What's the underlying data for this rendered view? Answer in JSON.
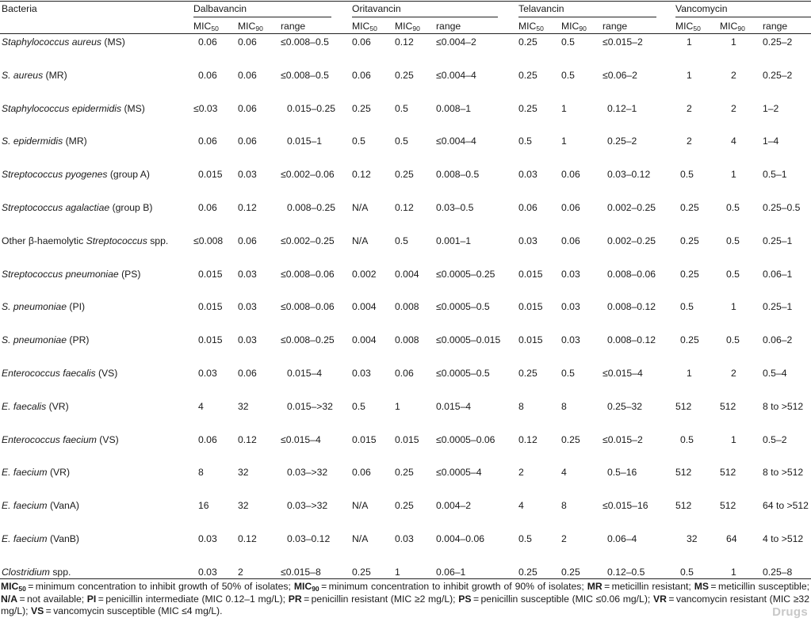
{
  "table": {
    "bacteria_header": "Bacteria",
    "drugs": [
      "Dalbavancin",
      "Oritavancin",
      "Telavancin",
      "Vancomycin"
    ],
    "sub_headers": {
      "mic": "MIC",
      "mic50_sub": "50",
      "mic90_sub": "90",
      "range": "range"
    },
    "rows": [
      {
        "bacteria": {
          "italic": "Staphylococcus aureus",
          "plain": " (MS)"
        },
        "values": [
          "0.06",
          "0.06",
          "≤0.008–0.5",
          "0.06",
          "0.12",
          "≤0.004–2",
          "0.25",
          "0.5",
          "≤0.015–2",
          "1",
          "1",
          "0.25–2"
        ]
      },
      {
        "bacteria": {
          "italic": "S. aureus",
          "plain": " (MR)"
        },
        "values": [
          "0.06",
          "0.06",
          "≤0.008–0.5",
          "0.06",
          "0.25",
          "≤0.004–4",
          "0.25",
          "0.5",
          "≤0.06–2",
          "1",
          "2",
          "0.25–2"
        ]
      },
      {
        "bacteria": {
          "italic": "Staphylococcus epidermidis",
          "plain": " (MS)"
        },
        "values": [
          "≤0.03",
          "0.06",
          "0.015–0.25",
          "0.25",
          "0.5",
          "0.008–1",
          "0.25",
          "1",
          "0.12–1",
          "2",
          "2",
          "1–2"
        ]
      },
      {
        "bacteria": {
          "italic": "S. epidermidis",
          "plain": " (MR)"
        },
        "values": [
          "0.06",
          "0.06",
          "0.015–1",
          "0.5",
          "0.5",
          "≤0.004–4",
          "0.5",
          "1",
          "0.25–2",
          "2",
          "4",
          "1–4"
        ]
      },
      {
        "bacteria": {
          "italic": "Streptococcus pyogenes",
          "plain": " (group A)"
        },
        "values": [
          "0.015",
          "0.03",
          "≤0.002–0.06",
          "0.12",
          "0.25",
          "0.008–0.5",
          "0.03",
          "0.06",
          "0.03–0.12",
          "0.5",
          "1",
          "0.5–1"
        ]
      },
      {
        "bacteria": {
          "italic": "Streptococcus agalactiae",
          "plain": " (group B)"
        },
        "values": [
          "0.06",
          "0.12",
          "0.008–0.25",
          "N/A",
          "0.12",
          "0.03–0.5",
          "0.06",
          "0.06",
          "0.002–0.25",
          "0.25",
          "0.5",
          "0.25–0.5"
        ]
      },
      {
        "bacteria": {
          "prefix": "Other β-haemolytic ",
          "italic": "Streptococcus",
          "plain": " spp."
        },
        "values": [
          "≤0.008",
          "0.06",
          "≤0.002–0.25",
          "N/A",
          "0.5",
          "0.001–1",
          "0.03",
          "0.06",
          "0.002–0.25",
          "0.25",
          "0.5",
          "0.25–1"
        ]
      },
      {
        "bacteria": {
          "italic": "Streptococcus pneumoniae",
          "plain": " (PS)"
        },
        "values": [
          "0.015",
          "0.03",
          "≤0.008–0.06",
          "0.002",
          "0.004",
          "≤0.0005–0.25",
          "0.015",
          "0.03",
          "0.008–0.06",
          "0.25",
          "0.5",
          "0.06–1"
        ]
      },
      {
        "bacteria": {
          "italic": "S. pneumoniae",
          "plain": " (PI)"
        },
        "values": [
          "0.015",
          "0.03",
          "≤0.008–0.06",
          "0.004",
          "0.008",
          "≤0.0005–0.5",
          "0.015",
          "0.03",
          "0.008–0.12",
          "0.5",
          "1",
          "0.25–1"
        ]
      },
      {
        "bacteria": {
          "italic": "S. pneumoniae",
          "plain": " (PR)"
        },
        "values": [
          "0.015",
          "0.03",
          "≤0.008–0.25",
          "0.004",
          "0.008",
          "≤0.0005–0.015",
          "0.015",
          "0.03",
          "0.008–0.12",
          "0.25",
          "0.5",
          "0.06–2"
        ]
      },
      {
        "bacteria": {
          "italic": "Enterococcus faecalis",
          "plain": " (VS)"
        },
        "values": [
          "0.03",
          "0.06",
          "0.015–4",
          "0.03",
          "0.06",
          "≤0.0005–0.5",
          "0.25",
          "0.5",
          "≤0.015–4",
          "1",
          "2",
          "0.5–4"
        ]
      },
      {
        "bacteria": {
          "italic": "E. faecalis",
          "plain": " (VR)"
        },
        "values": [
          "4",
          "32",
          "0.015–>32",
          "0.5",
          "1",
          "0.015–4",
          "8",
          "8",
          "0.25–32",
          "512",
          "512",
          "8 to >512"
        ]
      },
      {
        "bacteria": {
          "italic": "Enterococcus faecium",
          "plain": " (VS)"
        },
        "values": [
          "0.06",
          "0.12",
          "≤0.015–4",
          "0.015",
          "0.015",
          "≤0.0005–0.06",
          "0.12",
          "0.25",
          "≤0.015–2",
          "0.5",
          "1",
          "0.5–2"
        ]
      },
      {
        "bacteria": {
          "italic": "E. faecium",
          "plain": " (VR)"
        },
        "values": [
          "8",
          "32",
          "0.03–>32",
          "0.06",
          "0.25",
          "≤0.0005–4",
          "2",
          "4",
          "0.5–16",
          "512",
          "512",
          "8 to >512"
        ]
      },
      {
        "bacteria": {
          "italic": "E. faecium",
          "plain": " (VanA)"
        },
        "values": [
          "16",
          "32",
          "0.03–>32",
          "N/A",
          "0.25",
          "0.004–2",
          "4",
          "8",
          "≤0.015–16",
          "512",
          "512",
          "64 to >512"
        ]
      },
      {
        "bacteria": {
          "italic": "E. faecium",
          "plain": " (VanB)"
        },
        "values": [
          "0.03",
          "0.12",
          "0.03–0.12",
          "N/A",
          "0.03",
          "0.004–0.06",
          "0.5",
          "2",
          "0.06–4",
          "32",
          "64",
          "4 to >512"
        ]
      },
      {
        "bacteria": {
          "italic": "Clostridium",
          "plain": " spp."
        },
        "values": [
          "0.03",
          "2",
          "≤0.015–8",
          "0.25",
          "1",
          "0.06–1",
          "0.25",
          "0.25",
          "0.12–0.5",
          "0.5",
          "1",
          "0.25–8"
        ]
      }
    ]
  },
  "footnote": {
    "segments": [
      {
        "b": "MIC",
        "sub": "50"
      },
      {
        "t": " = minimum concentration to inhibit growth of 50% of isolates; "
      },
      {
        "b": "MIC",
        "sub": "90"
      },
      {
        "t": " = minimum concentration to inhibit growth of 90% of isolates; "
      },
      {
        "b": "MR"
      },
      {
        "t": " = meticillin resistant; "
      },
      {
        "b": "MS"
      },
      {
        "t": " = meticillin susceptible; "
      },
      {
        "b": "N/A"
      },
      {
        "t": " = not available; "
      },
      {
        "b": "PI"
      },
      {
        "t": " = penicillin intermediate (MIC 0.12–1 mg/L); "
      },
      {
        "b": "PR"
      },
      {
        "t": " = penicillin resistant (MIC ≥2 mg/L); "
      },
      {
        "b": "PS"
      },
      {
        "t": " = penicillin susceptible (MIC ≤0.06 mg/L); "
      },
      {
        "b": "VR"
      },
      {
        "t": " = vancomycin resistant (MIC ≥32 mg/L); "
      },
      {
        "b": "VS"
      },
      {
        "t": " = vancomycin susceptible (MIC ≤4 mg/L)."
      }
    ]
  },
  "watermark": "Drugs"
}
